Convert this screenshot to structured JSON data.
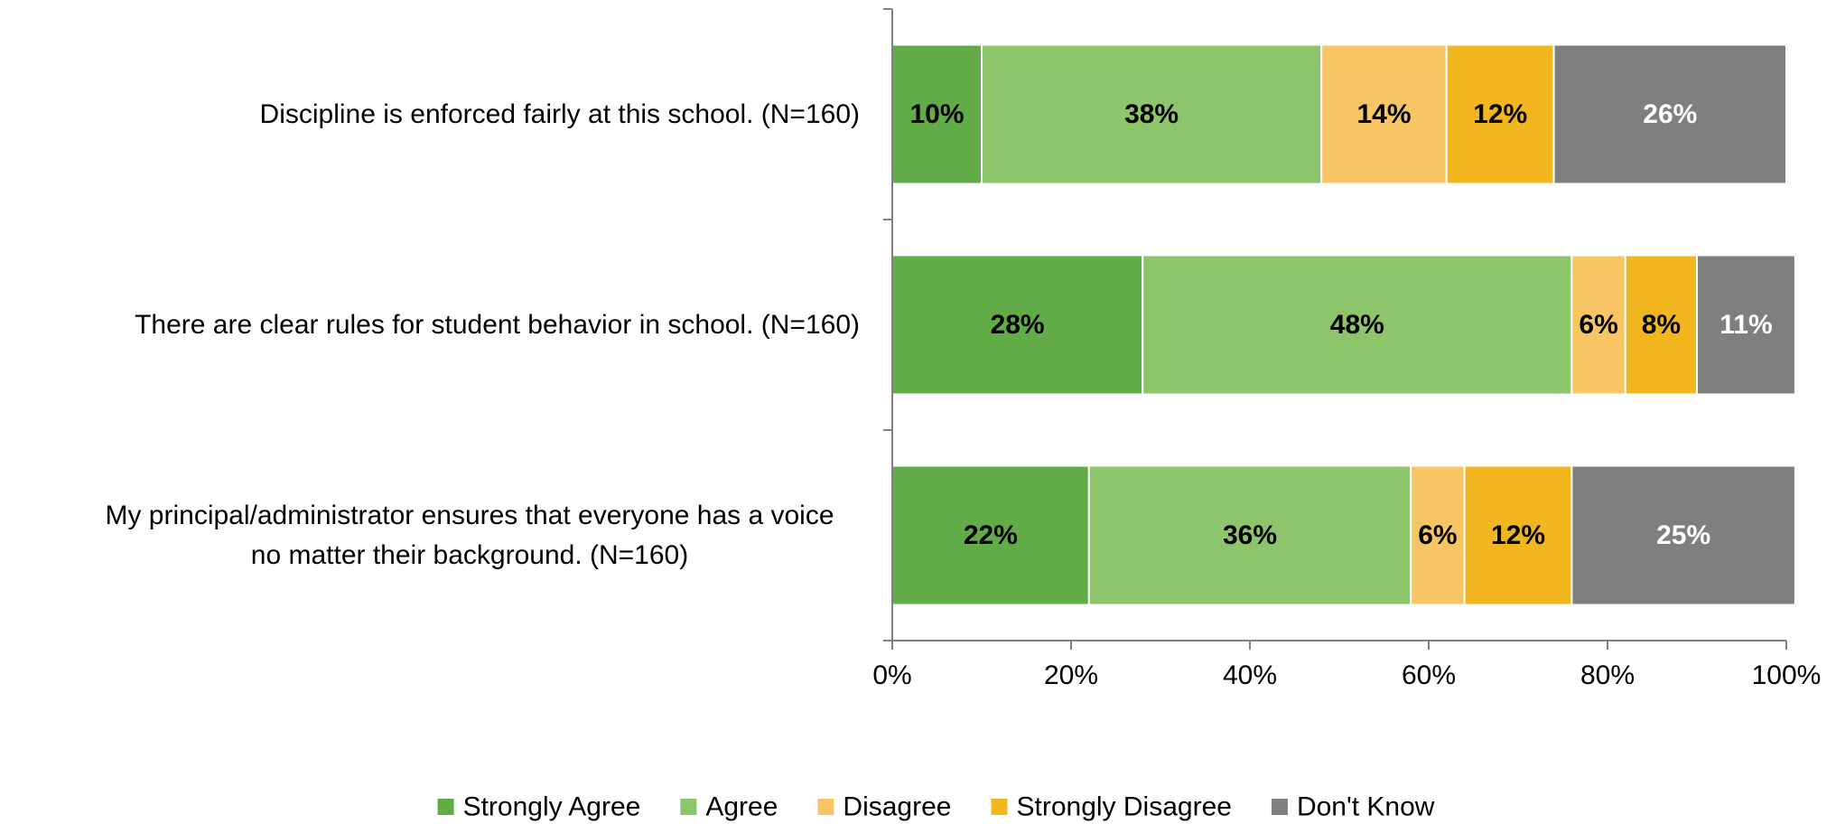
{
  "chart_data": {
    "type": "bar",
    "orientation": "horizontal",
    "stacked": true,
    "categories": [
      "Discipline is enforced fairly at this school. (N=160)",
      "There are clear rules for student behavior in school. (N=160)",
      "My principal/administrator ensures that everyone has a voice no matter their background. (N=160)"
    ],
    "category_lines": [
      [
        "Discipline is enforced fairly at this school. (N=160)"
      ],
      [
        "There are clear rules for student behavior in school. (N=160)"
      ],
      [
        "My principal/administrator ensures that everyone has a voice",
        "no matter their background. (N=160)"
      ]
    ],
    "series": [
      {
        "name": "Strongly Agree",
        "color": "#62AC47",
        "label_color": "#000000",
        "values": [
          10,
          28,
          22
        ]
      },
      {
        "name": "Agree",
        "color": "#8DC56A",
        "label_color": "#000000",
        "values": [
          38,
          48,
          36
        ]
      },
      {
        "name": "Disagree",
        "color": "#F7C563",
        "label_color": "#000000",
        "values": [
          14,
          6,
          6
        ]
      },
      {
        "name": "Strongly Disagree",
        "color": "#F2B71F",
        "label_color": "#000000",
        "values": [
          12,
          8,
          12
        ]
      },
      {
        "name": "Don't Know",
        "color": "#7F7F7F",
        "label_color": "#FFFFFF",
        "values": [
          26,
          11,
          25
        ]
      }
    ],
    "xlim": [
      0,
      100
    ],
    "xticks": [
      "0%",
      "20%",
      "40%",
      "60%",
      "80%",
      "100%"
    ],
    "value_suffix": "%",
    "grid": false,
    "legend_position": "bottom"
  }
}
